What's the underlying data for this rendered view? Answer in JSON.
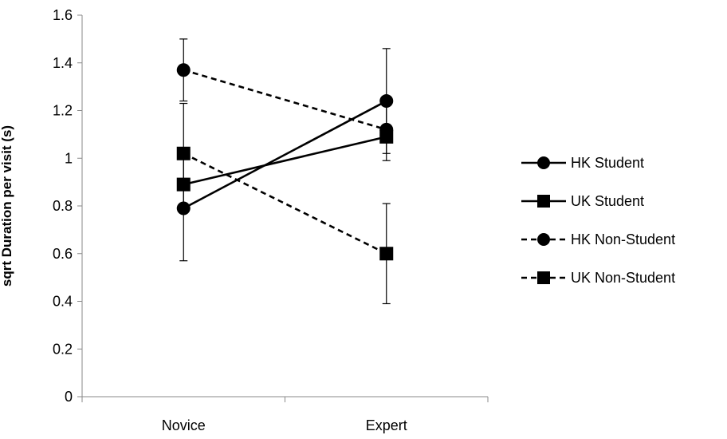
{
  "chart_data": {
    "type": "line",
    "categories": [
      "Novice",
      "Expert"
    ],
    "ylabel": "sqrt Duration per visit (s)",
    "xlabel": "",
    "ylim": [
      0,
      1.6
    ],
    "yticks": [
      "0",
      "0.2",
      "0.4",
      "0.6",
      "0.8",
      "1",
      "1.2",
      "1.4",
      "1.6"
    ],
    "grid": false,
    "legend_position": "right",
    "series": [
      {
        "name": "HK Student",
        "values": [
          0.79,
          1.24
        ],
        "error_low": [
          0.22,
          0.22
        ],
        "error_high": [
          0.22,
          0.22
        ],
        "marker": "circle",
        "line_style": "solid"
      },
      {
        "name": "UK Student",
        "values": [
          0.89,
          1.09
        ],
        "error_low": [
          0.0,
          0.0
        ],
        "error_high": [
          0.0,
          0.0
        ],
        "marker": "square",
        "line_style": "solid"
      },
      {
        "name": "HK Non-Student",
        "values": [
          1.37,
          1.12
        ],
        "error_low": [
          0.13,
          0.13
        ],
        "error_high": [
          0.13,
          0.13
        ],
        "marker": "circle",
        "line_style": "dashed"
      },
      {
        "name": "UK Non-Student",
        "values": [
          1.02,
          0.6
        ],
        "error_low": [
          0.21,
          0.21
        ],
        "error_high": [
          0.21,
          0.21
        ],
        "marker": "square",
        "line_style": "dashed"
      }
    ]
  }
}
